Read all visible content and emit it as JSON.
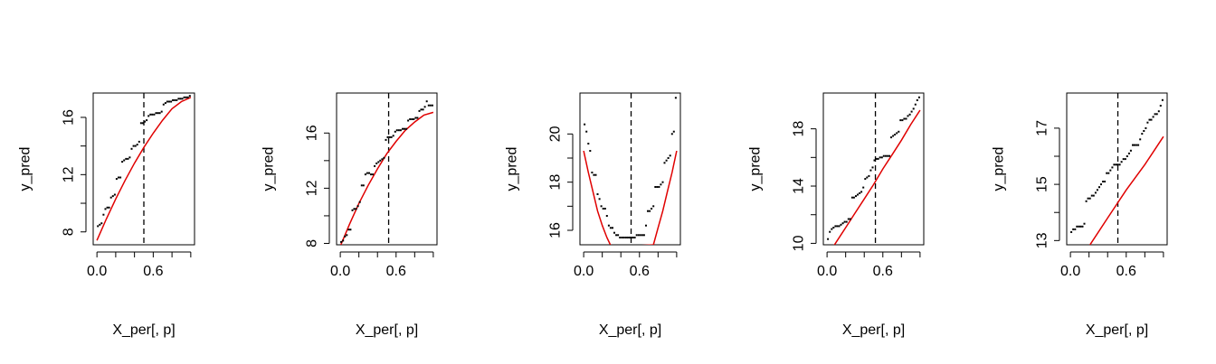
{
  "chart_data": [
    {
      "type": "scatter",
      "xlabel": "X_per[, p]",
      "ylabel": "y_pred",
      "xlim": [
        -0.04,
        1.04
      ],
      "ylim": [
        7.1,
        17.7
      ],
      "x_ticks": [
        0.0,
        0.6
      ],
      "x_tick_labels": [
        "0.0",
        "0.6"
      ],
      "y_ticks": [
        8,
        12,
        16
      ],
      "y_tick_labels": [
        "8",
        "12",
        "16"
      ],
      "vline_x": 0.5,
      "points_x": [
        0.01,
        0.03,
        0.05,
        0.07,
        0.09,
        0.11,
        0.13,
        0.15,
        0.17,
        0.19,
        0.21,
        0.23,
        0.25,
        0.27,
        0.29,
        0.31,
        0.33,
        0.35,
        0.37,
        0.39,
        0.41,
        0.43,
        0.45,
        0.47,
        0.49,
        0.51,
        0.53,
        0.55,
        0.57,
        0.59,
        0.61,
        0.63,
        0.65,
        0.67,
        0.69,
        0.71,
        0.73,
        0.75,
        0.77,
        0.79,
        0.81,
        0.83,
        0.85,
        0.87,
        0.89,
        0.91,
        0.93,
        0.95,
        0.97,
        0.99
      ],
      "points_y": [
        8.4,
        8.5,
        8.6,
        9.2,
        9.6,
        9.7,
        9.7,
        10.4,
        10.5,
        10.6,
        11.7,
        11.8,
        11.8,
        12.9,
        13.0,
        13.1,
        13.1,
        13.2,
        13.8,
        14.0,
        14.0,
        14.1,
        14.3,
        15.6,
        15.6,
        15.7,
        15.8,
        16.1,
        16.2,
        16.2,
        16.2,
        16.3,
        16.3,
        16.3,
        16.4,
        16.9,
        17.0,
        17.1,
        17.1,
        17.1,
        17.2,
        17.2,
        17.2,
        17.3,
        17.3,
        17.3,
        17.4,
        17.4,
        17.4,
        17.5
      ],
      "curve_x": [
        0.0,
        0.1,
        0.2,
        0.3,
        0.4,
        0.5,
        0.6,
        0.7,
        0.8,
        0.9,
        1.0
      ],
      "curve_y": [
        7.4,
        8.9,
        10.3,
        11.6,
        12.8,
        13.9,
        14.9,
        15.8,
        16.6,
        17.1,
        17.4
      ]
    },
    {
      "type": "scatter",
      "xlabel": "X_per[, p]",
      "ylabel": "y_pred",
      "xlim": [
        -0.04,
        1.04
      ],
      "ylim": [
        7.9,
        18.9
      ],
      "x_ticks": [
        0.0,
        0.6
      ],
      "x_tick_labels": [
        "0.0",
        "0.6"
      ],
      "y_ticks": [
        8,
        12,
        16
      ],
      "y_tick_labels": [
        "8",
        "12",
        "16"
      ],
      "vline_x": 0.52,
      "points_x": [
        0.01,
        0.03,
        0.05,
        0.07,
        0.09,
        0.11,
        0.13,
        0.15,
        0.17,
        0.19,
        0.21,
        0.23,
        0.25,
        0.27,
        0.29,
        0.31,
        0.33,
        0.35,
        0.37,
        0.39,
        0.41,
        0.43,
        0.45,
        0.47,
        0.49,
        0.51,
        0.53,
        0.55,
        0.57,
        0.59,
        0.61,
        0.63,
        0.65,
        0.67,
        0.69,
        0.71,
        0.73,
        0.75,
        0.77,
        0.79,
        0.81,
        0.83,
        0.85,
        0.87,
        0.89,
        0.91,
        0.93,
        0.95,
        0.97,
        0.99
      ],
      "points_y": [
        8.1,
        8.2,
        8.5,
        8.6,
        9.0,
        9.0,
        10.4,
        10.5,
        10.5,
        10.7,
        11.0,
        12.2,
        12.2,
        13.0,
        13.1,
        13.1,
        13.0,
        13.0,
        13.6,
        13.8,
        13.9,
        14.0,
        14.1,
        14.2,
        15.5,
        15.7,
        15.7,
        15.7,
        15.8,
        16.1,
        16.2,
        16.2,
        16.2,
        16.3,
        16.3,
        16.3,
        16.9,
        17.0,
        17.0,
        17.0,
        17.1,
        17.1,
        17.6,
        17.7,
        17.7,
        17.9,
        18.3,
        18.0,
        18.0,
        18.0
      ],
      "curve_x": [
        0.0,
        0.1,
        0.2,
        0.3,
        0.4,
        0.5,
        0.6,
        0.7,
        0.8,
        0.9,
        1.0
      ],
      "curve_y": [
        7.8,
        9.4,
        10.9,
        12.2,
        13.4,
        14.5,
        15.4,
        16.2,
        16.8,
        17.3,
        17.5
      ]
    },
    {
      "type": "scatter",
      "xlabel": "X_per[, p]",
      "ylabel": "y_pred",
      "xlim": [
        -0.04,
        1.04
      ],
      "ylim": [
        15.4,
        21.7
      ],
      "x_ticks": [
        0.0,
        0.6
      ],
      "x_tick_labels": [
        "0.0",
        "0.6"
      ],
      "y_ticks": [
        16,
        18,
        20
      ],
      "y_tick_labels": [
        "16",
        "18",
        "20"
      ],
      "vline_x": 0.51,
      "points_x": [
        0.01,
        0.03,
        0.05,
        0.07,
        0.09,
        0.11,
        0.13,
        0.15,
        0.17,
        0.19,
        0.21,
        0.23,
        0.25,
        0.27,
        0.29,
        0.31,
        0.33,
        0.35,
        0.37,
        0.39,
        0.41,
        0.43,
        0.45,
        0.47,
        0.49,
        0.51,
        0.53,
        0.55,
        0.57,
        0.59,
        0.61,
        0.63,
        0.65,
        0.67,
        0.69,
        0.71,
        0.73,
        0.75,
        0.77,
        0.79,
        0.81,
        0.83,
        0.85,
        0.87,
        0.89,
        0.91,
        0.93,
        0.95,
        0.97,
        0.99
      ],
      "points_y": [
        20.4,
        20.1,
        19.6,
        19.3,
        18.4,
        18.3,
        18.3,
        17.5,
        17.3,
        17.0,
        16.9,
        16.9,
        16.6,
        16.2,
        16.1,
        16.1,
        15.9,
        15.8,
        15.8,
        15.7,
        15.7,
        15.7,
        15.7,
        15.7,
        15.7,
        15.7,
        15.7,
        15.7,
        15.8,
        15.8,
        15.8,
        15.8,
        15.8,
        16.2,
        16.8,
        16.8,
        16.9,
        17.0,
        17.8,
        17.8,
        17.8,
        17.9,
        18.0,
        18.8,
        18.9,
        19.0,
        19.1,
        20.0,
        20.1,
        21.5
      ],
      "curve_x": [
        0.0,
        0.05,
        0.1,
        0.15,
        0.2,
        0.25,
        0.3,
        0.75,
        0.8,
        0.85,
        0.9,
        0.95,
        1.0
      ],
      "curve_y": [
        19.3,
        18.4,
        17.6,
        16.8,
        16.2,
        15.7,
        15.3,
        15.4,
        16.1,
        16.8,
        17.6,
        18.4,
        19.3
      ]
    },
    {
      "type": "scatter",
      "xlabel": "X_per[, p]",
      "ylabel": "y_pred",
      "xlim": [
        -0.04,
        1.04
      ],
      "ylim": [
        9.9,
        20.5
      ],
      "x_ticks": [
        0.0,
        0.6
      ],
      "x_tick_labels": [
        "0.0",
        "0.6"
      ],
      "y_ticks": [
        10,
        14,
        18
      ],
      "y_tick_labels": [
        "10",
        "14",
        "18"
      ],
      "vline_x": 0.52,
      "points_x": [
        0.01,
        0.03,
        0.05,
        0.07,
        0.09,
        0.11,
        0.13,
        0.15,
        0.17,
        0.19,
        0.21,
        0.23,
        0.25,
        0.27,
        0.29,
        0.31,
        0.33,
        0.35,
        0.37,
        0.39,
        0.41,
        0.43,
        0.45,
        0.47,
        0.49,
        0.51,
        0.53,
        0.55,
        0.57,
        0.59,
        0.61,
        0.63,
        0.65,
        0.67,
        0.69,
        0.71,
        0.73,
        0.75,
        0.77,
        0.79,
        0.81,
        0.83,
        0.85,
        0.87,
        0.89,
        0.91,
        0.93,
        0.95,
        0.97,
        0.99
      ],
      "points_y": [
        10.3,
        10.8,
        11.0,
        11.1,
        11.2,
        11.2,
        11.2,
        11.3,
        11.4,
        11.5,
        11.5,
        11.7,
        11.7,
        13.2,
        13.2,
        13.3,
        13.4,
        13.5,
        13.6,
        13.9,
        14.5,
        14.6,
        14.7,
        15.1,
        15.3,
        15.8,
        15.9,
        15.9,
        16.0,
        16.0,
        16.1,
        16.1,
        16.1,
        16.1,
        17.4,
        17.5,
        17.6,
        17.7,
        17.8,
        18.6,
        18.6,
        18.7,
        18.7,
        18.9,
        19.0,
        19.2,
        19.4,
        19.7,
        20.0,
        20.2
      ],
      "curve_x": [
        0.0,
        0.1,
        0.2,
        0.3,
        0.4,
        0.5,
        0.6,
        0.7,
        0.8,
        0.9,
        1.0
      ],
      "curve_y": [
        9.1,
        10.1,
        11.1,
        12.1,
        13.1,
        14.1,
        15.2,
        16.2,
        17.2,
        18.3,
        19.3
      ]
    },
    {
      "type": "scatter",
      "xlabel": "X_per[, p]",
      "ylabel": "y_pred",
      "xlim": [
        -0.04,
        1.04
      ],
      "ylim": [
        12.85,
        18.25
      ],
      "x_ticks": [
        0.0,
        0.6
      ],
      "x_tick_labels": [
        "0.0",
        "0.6"
      ],
      "y_ticks": [
        13,
        15,
        17
      ],
      "y_tick_labels": [
        "13",
        "15",
        "17"
      ],
      "vline_x": 0.51,
      "points_x": [
        0.01,
        0.03,
        0.05,
        0.07,
        0.09,
        0.11,
        0.13,
        0.15,
        0.17,
        0.19,
        0.21,
        0.23,
        0.25,
        0.27,
        0.29,
        0.31,
        0.33,
        0.35,
        0.37,
        0.39,
        0.41,
        0.43,
        0.45,
        0.47,
        0.49,
        0.51,
        0.53,
        0.55,
        0.57,
        0.59,
        0.61,
        0.63,
        0.65,
        0.67,
        0.69,
        0.71,
        0.73,
        0.75,
        0.77,
        0.79,
        0.81,
        0.83,
        0.85,
        0.87,
        0.89,
        0.91,
        0.93,
        0.95,
        0.97,
        0.99
      ],
      "points_y": [
        13.3,
        13.4,
        13.4,
        13.5,
        13.5,
        13.5,
        13.5,
        13.6,
        14.4,
        14.5,
        14.5,
        14.6,
        14.6,
        14.7,
        14.8,
        14.9,
        15.0,
        15.1,
        15.1,
        15.4,
        15.4,
        15.5,
        15.6,
        15.7,
        15.7,
        15.7,
        15.7,
        15.8,
        15.9,
        15.9,
        16.0,
        16.1,
        16.2,
        16.4,
        16.4,
        16.4,
        16.4,
        16.6,
        16.8,
        16.9,
        17.0,
        17.2,
        17.3,
        17.3,
        17.4,
        17.5,
        17.5,
        17.6,
        17.8,
        18.0
      ],
      "curve_x": [
        0.0,
        0.2,
        0.4,
        0.6,
        0.8,
        1.0
      ],
      "curve_y": [
        11.9,
        12.8,
        13.8,
        14.8,
        15.7,
        16.7
      ]
    }
  ]
}
